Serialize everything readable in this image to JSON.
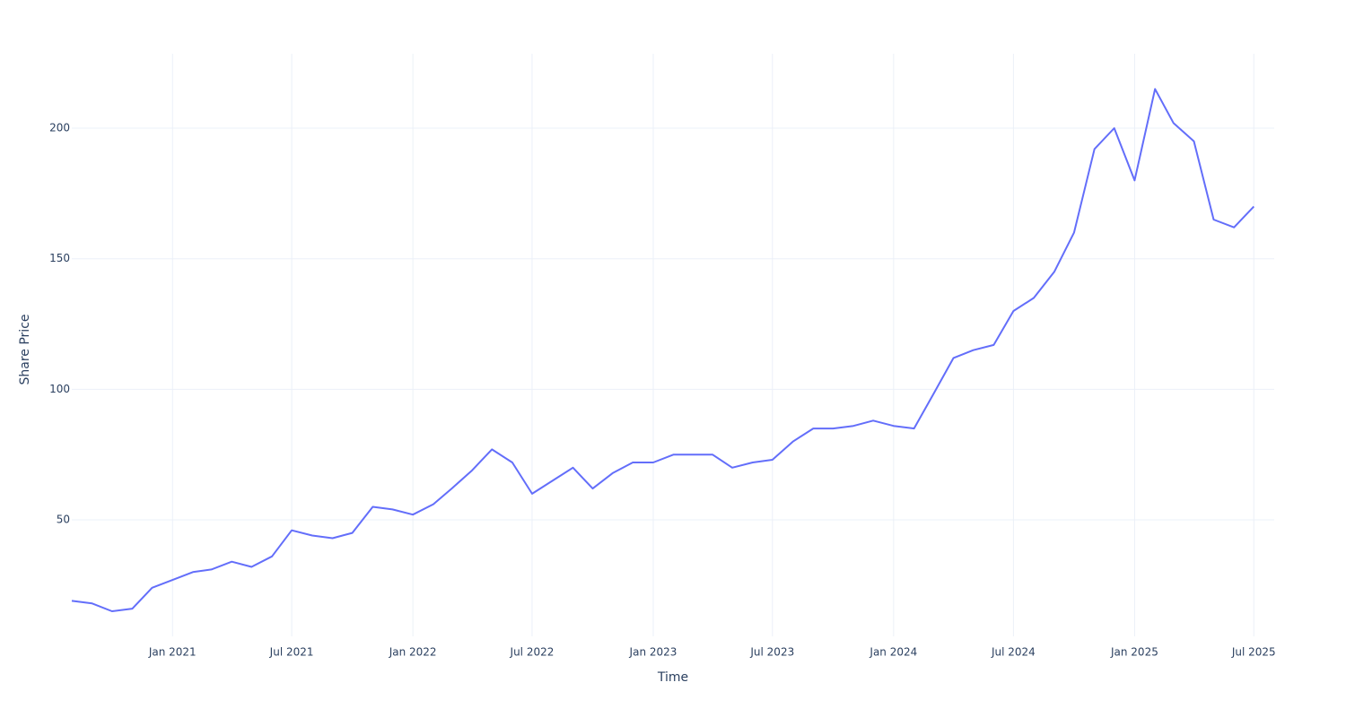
{
  "chart_data": {
    "type": "line",
    "x_label": "Time",
    "y_label": "Share Price",
    "x": [
      "2020-08",
      "2020-09",
      "2020-10",
      "2020-11",
      "2020-12",
      "2021-01",
      "2021-02",
      "2021-03",
      "2021-04",
      "2021-05",
      "2021-06",
      "2021-07",
      "2021-08",
      "2021-09",
      "2021-10",
      "2021-11",
      "2021-12",
      "2022-01",
      "2022-02",
      "2022-03",
      "2022-04",
      "2022-05",
      "2022-06",
      "2022-07",
      "2022-08",
      "2022-09",
      "2022-10",
      "2022-11",
      "2022-12",
      "2023-01",
      "2023-02",
      "2023-03",
      "2023-04",
      "2023-05",
      "2023-06",
      "2023-07",
      "2023-08",
      "2023-09",
      "2023-10",
      "2023-11",
      "2023-12",
      "2024-01",
      "2024-02",
      "2024-03",
      "2024-04",
      "2024-05",
      "2024-06",
      "2024-07",
      "2024-08",
      "2024-09",
      "2024-10",
      "2024-11",
      "2024-12",
      "2025-01",
      "2025-02",
      "2025-03",
      "2025-04",
      "2025-05",
      "2025-06",
      "2025-07"
    ],
    "values": [
      19,
      18,
      15,
      16,
      24,
      27,
      30,
      31,
      34,
      32,
      36,
      46,
      44,
      43,
      45,
      55,
      54,
      52,
      56,
      62,
      69,
      77,
      72,
      60,
      65,
      70,
      62,
      68,
      72,
      72,
      75,
      75,
      75,
      70,
      72,
      73,
      80,
      85,
      85,
      86,
      88,
      86,
      85,
      98,
      112,
      115,
      117,
      130,
      135,
      145,
      160,
      192,
      200,
      180,
      215,
      202,
      195,
      165,
      162,
      170
    ],
    "color": "#636efa",
    "xlim": [
      "2020-08",
      "2025-08"
    ],
    "xticks": [
      {
        "value": "2021-01",
        "label": "Jan 2021"
      },
      {
        "value": "2021-07",
        "label": "Jul 2021"
      },
      {
        "value": "2022-01",
        "label": "Jan 2022"
      },
      {
        "value": "2022-07",
        "label": "Jul 2022"
      },
      {
        "value": "2023-01",
        "label": "Jan 2023"
      },
      {
        "value": "2023-07",
        "label": "Jul 2023"
      },
      {
        "value": "2024-01",
        "label": "Jan 2024"
      },
      {
        "value": "2024-07",
        "label": "Jul 2024"
      },
      {
        "value": "2025-01",
        "label": "Jan 2025"
      },
      {
        "value": "2025-07",
        "label": "Jul 2025"
      }
    ],
    "ylim": [
      5.4,
      228.5
    ],
    "yticks": [
      50,
      100,
      150,
      200
    ],
    "grid": true
  }
}
